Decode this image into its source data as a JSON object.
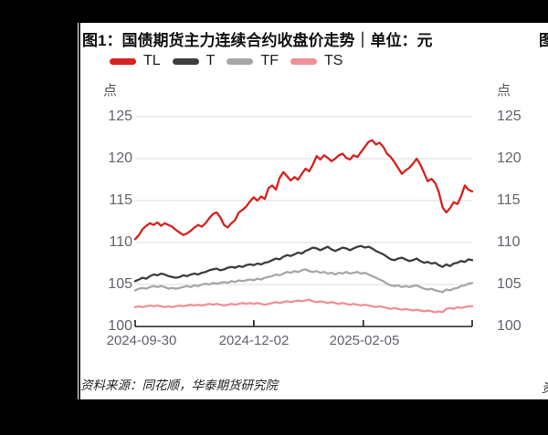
{
  "figure": {
    "title": "图1：国债期货主力连续合约收盘价走势｜单位：元",
    "next_column_title_fragment": "图",
    "source": "资料来源：同花顺，华泰期货研究院",
    "next_column_source_fragment": "资"
  },
  "chart_data": {
    "type": "line",
    "title": "国债期货主力连续合约收盘价走势",
    "unit": "元",
    "axis_unit_label": "点",
    "grid": true,
    "legend_position": "top-left",
    "ylim": [
      100,
      126
    ],
    "y_ticks": [
      100,
      105,
      110,
      115,
      120,
      125
    ],
    "x_tick_labels": [
      "2024-09-30",
      "2024-12-02",
      "2025-02-05"
    ],
    "colors": {
      "grid_line": "#d8dce2",
      "axis_line": "#1f1f1f",
      "tick_text": "#62626c"
    },
    "series": [
      {
        "name": "TL",
        "color": "#d7211e",
        "values": [
          110.4,
          110.9,
          111.6,
          112.0,
          112.3,
          112.1,
          112.4,
          112.0,
          112.3,
          112.1,
          111.9,
          111.5,
          111.2,
          110.9,
          111.1,
          111.4,
          111.8,
          112.1,
          111.9,
          112.3,
          112.9,
          113.4,
          113.6,
          113.0,
          112.1,
          111.8,
          112.3,
          112.7,
          113.6,
          113.9,
          114.3,
          114.9,
          115.4,
          115.0,
          115.5,
          115.2,
          116.5,
          116.8,
          116.3,
          117.7,
          118.4,
          117.9,
          117.4,
          117.8,
          117.5,
          118.2,
          118.8,
          118.5,
          119.3,
          120.3,
          119.9,
          120.4,
          120.1,
          119.7,
          120.0,
          120.4,
          120.6,
          120.1,
          119.9,
          120.4,
          120.2,
          120.8,
          121.4,
          122.0,
          122.2,
          121.7,
          121.9,
          121.4,
          120.6,
          120.2,
          119.6,
          118.9,
          118.2,
          118.6,
          118.9,
          119.4,
          120.0,
          119.3,
          118.3,
          117.3,
          117.6,
          117.1,
          116.0,
          114.2,
          113.6,
          114.1,
          114.8,
          114.6,
          115.5,
          116.8,
          116.3,
          116.1
        ]
      },
      {
        "name": "T",
        "color": "#3d3d3d",
        "values": [
          105.4,
          105.6,
          105.8,
          105.7,
          106.0,
          106.2,
          106.1,
          106.3,
          106.2,
          106.0,
          105.9,
          105.8,
          105.9,
          106.1,
          106.0,
          106.2,
          106.3,
          106.2,
          106.4,
          106.5,
          106.7,
          106.8,
          106.9,
          106.7,
          106.8,
          107.0,
          107.1,
          107.0,
          107.2,
          107.1,
          107.3,
          107.4,
          107.3,
          107.5,
          107.4,
          107.6,
          107.7,
          107.9,
          108.1,
          108.0,
          108.3,
          108.5,
          108.4,
          108.6,
          108.8,
          108.7,
          109.0,
          109.2,
          109.4,
          109.3,
          109.1,
          109.3,
          109.5,
          109.2,
          109.0,
          109.2,
          109.4,
          109.3,
          109.1,
          109.3,
          109.5,
          109.6,
          109.4,
          109.5,
          109.3,
          109.0,
          108.8,
          108.6,
          108.3,
          108.0,
          107.9,
          108.1,
          108.2,
          108.0,
          107.8,
          107.9,
          108.1,
          107.8,
          107.6,
          107.7,
          107.5,
          107.6,
          107.3,
          107.1,
          107.4,
          107.2,
          107.5,
          107.6,
          107.8,
          107.7,
          108.0,
          107.9
        ]
      },
      {
        "name": "TF",
        "color": "#a7a7a7",
        "values": [
          104.3,
          104.5,
          104.6,
          104.5,
          104.7,
          104.8,
          104.7,
          104.8,
          104.7,
          104.5,
          104.6,
          104.5,
          104.6,
          104.7,
          104.8,
          104.7,
          104.9,
          104.8,
          105.0,
          105.1,
          105.0,
          105.2,
          105.1,
          105.2,
          105.3,
          105.2,
          105.4,
          105.3,
          105.5,
          105.4,
          105.5,
          105.6,
          105.5,
          105.7,
          105.6,
          105.8,
          105.9,
          106.0,
          106.2,
          106.1,
          106.3,
          106.5,
          106.4,
          106.6,
          106.5,
          106.7,
          106.8,
          106.6,
          106.5,
          106.6,
          106.4,
          106.5,
          106.3,
          106.4,
          106.2,
          106.4,
          106.3,
          106.5,
          106.3,
          106.4,
          106.5,
          106.3,
          106.4,
          106.2,
          106.0,
          105.8,
          105.6,
          105.4,
          105.1,
          104.9,
          104.8,
          104.9,
          104.7,
          104.8,
          104.7,
          104.8,
          104.9,
          104.7,
          104.5,
          104.4,
          104.5,
          104.3,
          104.2,
          104.1,
          104.4,
          104.3,
          104.5,
          104.6,
          104.8,
          104.9,
          105.1,
          105.2
        ]
      },
      {
        "name": "TS",
        "color": "#ef9097",
        "values": [
          102.3,
          102.4,
          102.3,
          102.4,
          102.5,
          102.4,
          102.5,
          102.4,
          102.3,
          102.4,
          102.3,
          102.4,
          102.5,
          102.4,
          102.5,
          102.6,
          102.5,
          102.6,
          102.5,
          102.6,
          102.7,
          102.6,
          102.7,
          102.6,
          102.5,
          102.6,
          102.7,
          102.6,
          102.7,
          102.8,
          102.7,
          102.8,
          102.7,
          102.8,
          102.7,
          102.6,
          102.7,
          102.8,
          102.9,
          102.8,
          102.9,
          103.0,
          102.9,
          103.0,
          103.1,
          103.0,
          103.1,
          103.2,
          103.0,
          102.9,
          103.0,
          102.9,
          102.8,
          102.9,
          102.8,
          102.7,
          102.8,
          102.7,
          102.6,
          102.7,
          102.6,
          102.5,
          102.6,
          102.5,
          102.4,
          102.3,
          102.4,
          102.3,
          102.2,
          102.1,
          102.2,
          102.1,
          102.0,
          102.1,
          102.0,
          101.9,
          102.0,
          101.9,
          101.8,
          101.9,
          101.8,
          101.7,
          101.8,
          101.7,
          102.1,
          102.2,
          102.1,
          102.3,
          102.2,
          102.3,
          102.4,
          102.4
        ]
      }
    ]
  }
}
